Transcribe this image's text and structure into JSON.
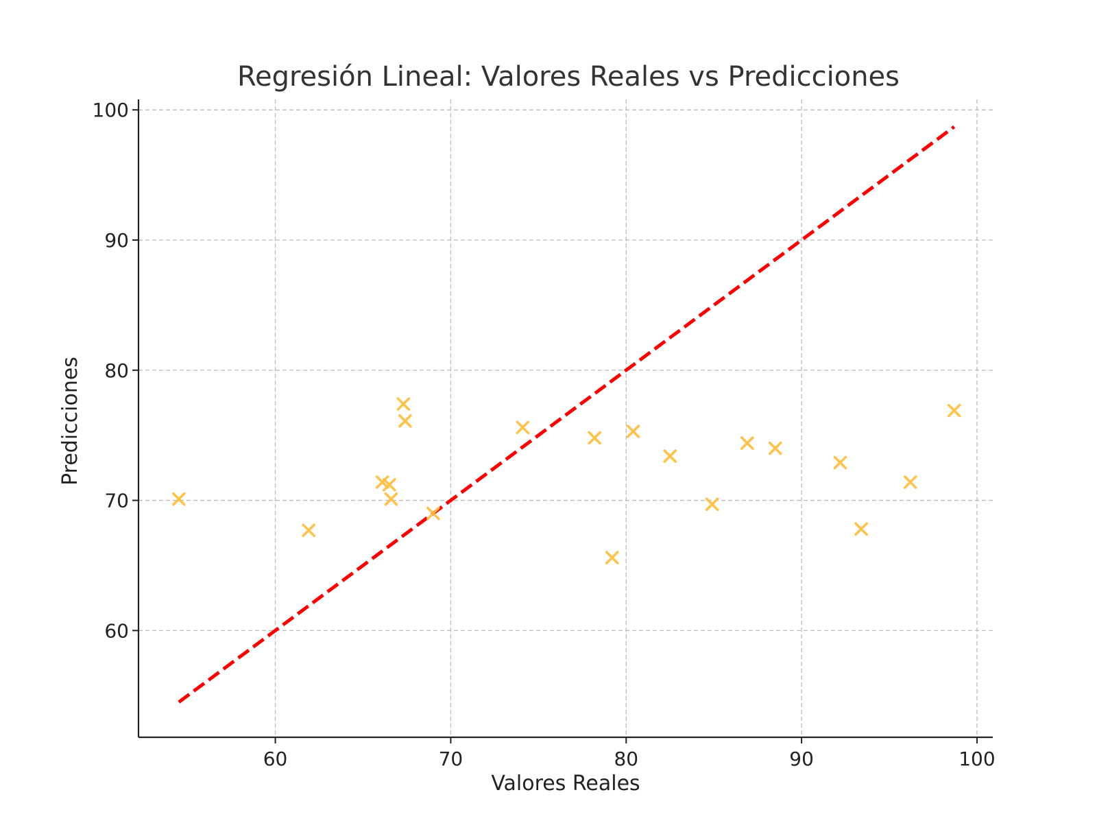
{
  "chart_data": {
    "type": "scatter",
    "title": "Regresión Lineal: Valores Reales vs Predicciones",
    "xlabel": "Valores Reales",
    "ylabel": "Predicciones",
    "xlim": [
      52.2,
      100.9
    ],
    "ylim": [
      51.8,
      100.8
    ],
    "xticks": [
      60,
      70,
      80,
      90,
      100
    ],
    "yticks": [
      60,
      70,
      80,
      90,
      100
    ],
    "grid": true,
    "marker_color": "#FFBF40",
    "line_color": "#FF0000",
    "series": [
      {
        "kind": "scatter",
        "marker": "x",
        "points": [
          [
            54.5,
            70.1
          ],
          [
            61.9,
            67.7
          ],
          [
            66.1,
            71.4
          ],
          [
            66.5,
            71.2
          ],
          [
            66.6,
            70.1
          ],
          [
            67.3,
            77.4
          ],
          [
            67.4,
            76.1
          ],
          [
            69.0,
            69.0
          ],
          [
            74.1,
            75.6
          ],
          [
            78.2,
            74.8
          ],
          [
            79.2,
            65.6
          ],
          [
            80.4,
            75.3
          ],
          [
            82.5,
            73.4
          ],
          [
            84.9,
            69.7
          ],
          [
            86.9,
            74.4
          ],
          [
            88.5,
            74.0
          ],
          [
            92.2,
            72.9
          ],
          [
            93.4,
            67.8
          ],
          [
            96.2,
            71.4
          ],
          [
            98.7,
            76.9
          ]
        ]
      },
      {
        "kind": "line",
        "style": "dashed",
        "points": [
          [
            54.5,
            54.5
          ],
          [
            98.7,
            98.7
          ]
        ]
      }
    ]
  }
}
